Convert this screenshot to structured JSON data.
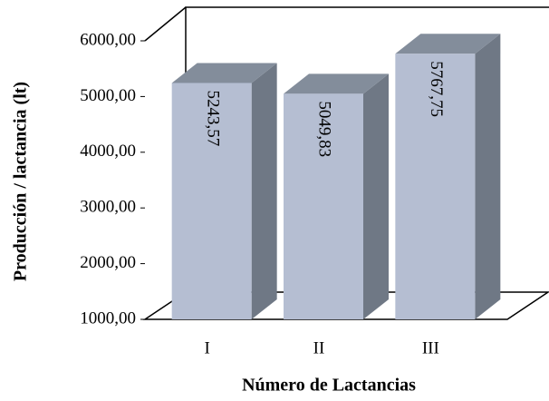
{
  "chart_data": {
    "type": "bar3d",
    "x_label": "Número de Lactancias",
    "y_label": "Producción / lactancia (lt)",
    "categories": [
      "I",
      "II",
      "III"
    ],
    "values": [
      5243.57,
      5049.83,
      5767.75
    ],
    "value_labels": [
      "5243,57",
      "5049,83",
      "5767,75"
    ],
    "color": "#b5bed2",
    "ylim": [
      1000,
      6000
    ],
    "yticks": [
      {
        "value": 1000,
        "label": "1000,00"
      },
      {
        "value": 2000,
        "label": "2000,00"
      },
      {
        "value": 3000,
        "label": "3000,00"
      },
      {
        "value": 4000,
        "label": "4000,00"
      },
      {
        "value": 5000,
        "label": "5000,00"
      },
      {
        "value": 6000,
        "label": "6000,00"
      }
    ]
  }
}
